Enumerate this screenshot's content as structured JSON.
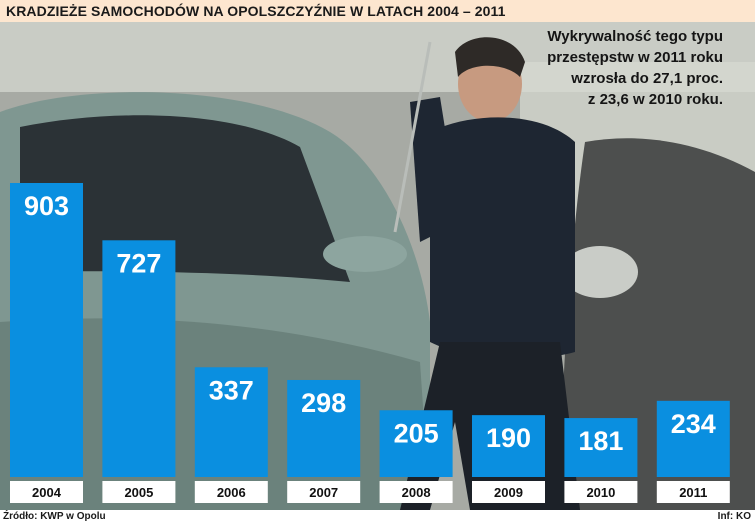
{
  "title": "KRADZIEŻE SAMOCHODÓW NA OPOLSZCZYŹNIE W LATACH 2004 – 2011",
  "annotation_lines": [
    "Wykrywalność tego typu",
    "przestępstw w 2011 roku",
    "wzrosła do 27,1 proc.",
    "z 23,6 w 2010 roku."
  ],
  "footer": {
    "source": "Źródło: KWP w Opolu",
    "credit": "Inf: KO"
  },
  "colors": {
    "bar": "#0a8fe0",
    "title_bar": "#fde6cf"
  },
  "chart_data": {
    "type": "bar",
    "title": "KRADZIEŻE SAMOCHODÓW NA OPOLSZCZYŹNIE W LATACH 2004 – 2011",
    "categories": [
      "2004",
      "2005",
      "2006",
      "2007",
      "2008",
      "2009",
      "2010",
      "2011"
    ],
    "values": [
      903,
      727,
      337,
      298,
      205,
      190,
      181,
      234
    ],
    "xlabel": "",
    "ylabel": "",
    "ylim": [
      0,
      903
    ],
    "grid": false,
    "legend": "none",
    "data_labels": true
  }
}
